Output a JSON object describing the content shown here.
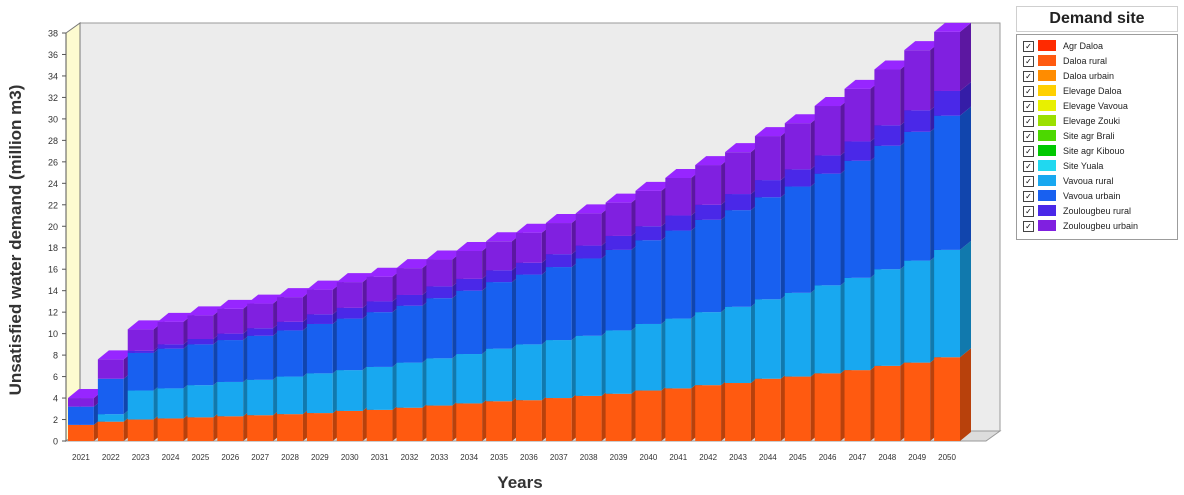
{
  "chart_data": {
    "type": "bar",
    "stacked": true,
    "three_d": true,
    "title": "",
    "xlabel": "Years",
    "ylabel": "Unsatisfied water demand (million m3)",
    "ylim": [
      0,
      38
    ],
    "yticks": [
      0,
      2,
      4,
      6,
      8,
      10,
      12,
      14,
      16,
      18,
      20,
      22,
      24,
      26,
      28,
      30,
      32,
      34,
      36,
      38
    ],
    "legend_title": "Demand site",
    "legend_position": "right",
    "categories": [
      "2021",
      "2022",
      "2023",
      "2024",
      "2025",
      "2026",
      "2027",
      "2028",
      "2029",
      "2030",
      "2031",
      "2032",
      "2033",
      "2034",
      "2035",
      "2036",
      "2037",
      "2038",
      "2039",
      "2040",
      "2041",
      "2042",
      "2043",
      "2044",
      "2045",
      "2046",
      "2047",
      "2048",
      "2049",
      "2050"
    ],
    "series": [
      {
        "name": "Agr Daloa",
        "color": "#ff2a00",
        "values": [
          0,
          0,
          0,
          0,
          0,
          0,
          0,
          0,
          0,
          0,
          0,
          0,
          0,
          0,
          0,
          0,
          0,
          0,
          0,
          0,
          0,
          0,
          0,
          0,
          0,
          0,
          0,
          0,
          0,
          0
        ]
      },
      {
        "name": "Daloa rural",
        "color": "#ff5a10",
        "values": [
          1.5,
          1.8,
          2.0,
          2.1,
          2.2,
          2.3,
          2.4,
          2.5,
          2.6,
          2.8,
          2.9,
          3.1,
          3.3,
          3.5,
          3.7,
          3.8,
          4.0,
          4.2,
          4.4,
          4.7,
          4.9,
          5.2,
          5.4,
          5.8,
          6.0,
          6.3,
          6.6,
          7.0,
          7.3,
          7.8
        ]
      },
      {
        "name": "Daloa urbain",
        "color": "#ff8c00",
        "values": [
          0,
          0,
          0,
          0,
          0,
          0,
          0,
          0,
          0,
          0,
          0,
          0,
          0,
          0,
          0,
          0,
          0,
          0,
          0,
          0,
          0,
          0,
          0,
          0,
          0,
          0,
          0,
          0,
          0,
          0
        ]
      },
      {
        "name": "Elevage Daloa",
        "color": "#ffd000",
        "values": [
          0,
          0,
          0,
          0,
          0,
          0,
          0,
          0,
          0,
          0,
          0,
          0,
          0,
          0,
          0,
          0,
          0,
          0,
          0,
          0,
          0,
          0,
          0,
          0,
          0,
          0,
          0,
          0,
          0,
          0
        ]
      },
      {
        "name": "Elevage Vavoua",
        "color": "#e8f000",
        "values": [
          0,
          0,
          0,
          0,
          0,
          0,
          0,
          0,
          0,
          0,
          0,
          0,
          0,
          0,
          0,
          0,
          0,
          0,
          0,
          0,
          0,
          0,
          0,
          0,
          0,
          0,
          0,
          0,
          0,
          0
        ]
      },
      {
        "name": "Elevage Zouki",
        "color": "#9be000",
        "values": [
          0,
          0,
          0,
          0,
          0,
          0,
          0,
          0,
          0,
          0,
          0,
          0,
          0,
          0,
          0,
          0,
          0,
          0,
          0,
          0,
          0,
          0,
          0,
          0,
          0,
          0,
          0,
          0,
          0,
          0
        ]
      },
      {
        "name": "Site agr Brali",
        "color": "#4cd800",
        "values": [
          0,
          0,
          0,
          0,
          0,
          0,
          0,
          0,
          0,
          0,
          0,
          0,
          0,
          0,
          0,
          0,
          0,
          0,
          0,
          0,
          0,
          0,
          0,
          0,
          0,
          0,
          0,
          0,
          0,
          0
        ]
      },
      {
        "name": "Site agr Kibouo",
        "color": "#00c800",
        "values": [
          0,
          0,
          0,
          0,
          0,
          0,
          0,
          0,
          0,
          0,
          0,
          0,
          0,
          0,
          0,
          0,
          0,
          0,
          0,
          0,
          0,
          0,
          0,
          0,
          0,
          0,
          0,
          0,
          0,
          0
        ]
      },
      {
        "name": "Site Yuala",
        "color": "#20d8f0",
        "values": [
          0,
          0,
          0,
          0,
          0,
          0,
          0,
          0,
          0,
          0,
          0,
          0,
          0,
          0,
          0,
          0,
          0,
          0,
          0,
          0,
          0,
          0,
          0,
          0,
          0,
          0,
          0,
          0,
          0,
          0
        ]
      },
      {
        "name": "Vavoua rural",
        "color": "#18a8f0",
        "values": [
          0,
          0.7,
          2.7,
          2.8,
          3.0,
          3.2,
          3.3,
          3.5,
          3.7,
          3.8,
          4.0,
          4.2,
          4.4,
          4.6,
          4.9,
          5.2,
          5.4,
          5.6,
          5.9,
          6.2,
          6.5,
          6.8,
          7.1,
          7.4,
          7.8,
          8.2,
          8.6,
          9.0,
          9.5,
          10.0
        ]
      },
      {
        "name": "Vavoua urbain",
        "color": "#1860f0",
        "values": [
          1.7,
          3.3,
          3.5,
          3.7,
          3.8,
          3.9,
          4.1,
          4.3,
          4.6,
          4.8,
          5.1,
          5.3,
          5.6,
          5.9,
          6.2,
          6.5,
          6.8,
          7.2,
          7.5,
          7.8,
          8.2,
          8.6,
          9.0,
          9.5,
          9.9,
          10.4,
          10.9,
          11.5,
          12.0,
          12.5
        ]
      },
      {
        "name": "Zoulougbeu rural",
        "color": "#4a28e8",
        "values": [
          0,
          0,
          0.2,
          0.4,
          0.5,
          0.6,
          0.7,
          0.8,
          0.9,
          1.0,
          1.0,
          1.0,
          1.1,
          1.1,
          1.1,
          1.1,
          1.2,
          1.2,
          1.3,
          1.3,
          1.4,
          1.4,
          1.5,
          1.6,
          1.6,
          1.7,
          1.8,
          1.9,
          2.0,
          2.3
        ]
      },
      {
        "name": "Zoulougbeu urbain",
        "color": "#8020e0",
        "values": [
          0.8,
          1.8,
          2.0,
          2.1,
          2.2,
          2.3,
          2.3,
          2.3,
          2.3,
          2.4,
          2.3,
          2.5,
          2.5,
          2.6,
          2.7,
          2.8,
          2.9,
          3.0,
          3.1,
          3.3,
          3.5,
          3.7,
          3.9,
          4.1,
          4.3,
          4.6,
          4.9,
          5.2,
          5.6,
          5.5
        ]
      }
    ]
  }
}
